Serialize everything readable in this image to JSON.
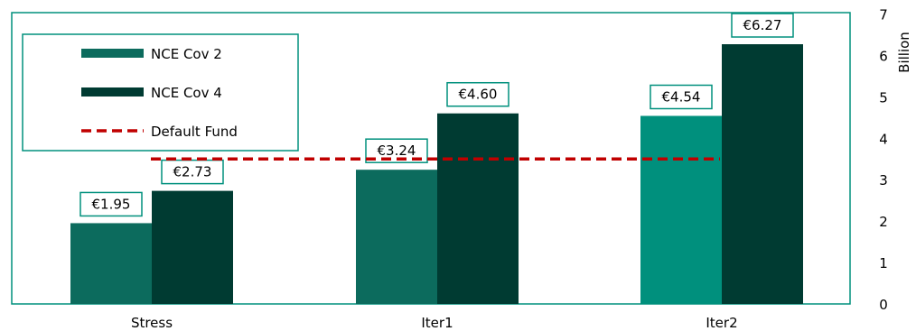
{
  "chart_data": {
    "type": "bar",
    "categories": [
      "Stress",
      "Iter1",
      "Iter2"
    ],
    "series": [
      {
        "name": "NCE Cov 2",
        "values": [
          1.95,
          3.24,
          4.54
        ],
        "labels": [
          "€1.95",
          "€3.24",
          "€4.54"
        ],
        "colors": [
          "#0c6b5d",
          "#0c6b5d",
          "#00907d"
        ]
      },
      {
        "name": "NCE Cov 4",
        "values": [
          2.73,
          4.6,
          6.27
        ],
        "labels": [
          "€2.73",
          "€4.60",
          "€6.27"
        ],
        "colors": [
          "#003b32",
          "#003b32",
          "#003b32"
        ]
      }
    ],
    "reference_line": {
      "name": "Default Fund",
      "value": 3.5,
      "color": "#c00000",
      "style": "dashed"
    },
    "ylabel": "Billion",
    "ylim": [
      0,
      7
    ],
    "yticks": [
      "0",
      "1",
      "2",
      "3",
      "4",
      "5",
      "6",
      "7"
    ],
    "legend_position": "top-left",
    "grid": false,
    "colors": {
      "frame": "#00907d",
      "label_border": "#00907d",
      "axis_text": "#000000"
    }
  }
}
